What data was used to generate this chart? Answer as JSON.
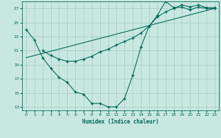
{
  "xlabel": "Humidex (Indice chaleur)",
  "bg_color": "#c8e8df",
  "grid_color": "#a8cfc8",
  "line_color": "#006858",
  "xlim": [
    -0.5,
    23.5
  ],
  "ylim": [
    12.5,
    28.0
  ],
  "xticks": [
    0,
    1,
    2,
    3,
    4,
    5,
    6,
    7,
    8,
    9,
    10,
    11,
    12,
    13,
    14,
    15,
    16,
    17,
    18,
    19,
    20,
    21,
    22,
    23
  ],
  "yticks": [
    13,
    15,
    17,
    19,
    21,
    23,
    25,
    27
  ],
  "line1_x": [
    0,
    1,
    2,
    3,
    4,
    5,
    6,
    7,
    8,
    9,
    10,
    11,
    12,
    13,
    14,
    15,
    16,
    17,
    18,
    19,
    20,
    21,
    22,
    23
  ],
  "line1_y": [
    24.0,
    22.5,
    20.0,
    18.5,
    17.2,
    16.5,
    15.1,
    14.8,
    13.5,
    13.5,
    13.0,
    13.0,
    14.2,
    17.5,
    21.5,
    24.5,
    26.0,
    28.0,
    27.1,
    27.2,
    26.8,
    27.2,
    27.0,
    27.0
  ],
  "line2_x": [
    2,
    3,
    4,
    5,
    6,
    7,
    8,
    9,
    10,
    11,
    12,
    13,
    14,
    15,
    16,
    17,
    18,
    19,
    20,
    21,
    22,
    23
  ],
  "line2_y": [
    21.0,
    20.3,
    19.8,
    19.5,
    19.5,
    19.8,
    20.2,
    20.8,
    21.2,
    21.8,
    22.3,
    22.8,
    23.5,
    24.5,
    25.8,
    26.5,
    27.0,
    27.5,
    27.2,
    27.5,
    27.1,
    27.1
  ],
  "line3_x": [
    0,
    23
  ],
  "line3_y": [
    20.0,
    27.0
  ]
}
